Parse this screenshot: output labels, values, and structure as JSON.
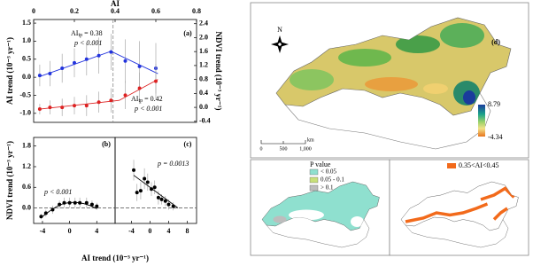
{
  "chart_data": [
    {
      "type": "scatter",
      "panel_label": "(a)",
      "x_label": "AI",
      "y_label": "AI trend (10⁻³ yr⁻¹)",
      "y2_label": "NDVI trend (10⁻³ yr⁻¹)",
      "x": [
        0.03,
        0.08,
        0.14,
        0.2,
        0.26,
        0.32,
        0.38,
        0.45,
        0.52,
        0.6
      ],
      "xlim": [
        0,
        0.8
      ],
      "xticks": [
        0,
        0.2,
        0.4,
        0.6,
        0.8
      ],
      "ylim": [
        -1.25,
        1.6
      ],
      "yticks": [
        {
          "value": -1,
          "label": "-1.0"
        },
        {
          "value": -0.5,
          "label": "-0.5"
        },
        {
          "value": 0,
          "label": "0.0"
        },
        {
          "value": 0.5,
          "label": "0.5"
        },
        {
          "value": 1,
          "label": "1.0"
        },
        {
          "value": 1.5,
          "label": "1.5"
        }
      ],
      "y2lim": [
        -0.43,
        2.52
      ],
      "y2ticks": [
        -0.4,
        {
          "value": 0,
          "label": "0.0"
        },
        0.4,
        0.8,
        1.2,
        1.6,
        {
          "value": 2,
          "label": "2.0"
        },
        2.4
      ],
      "vline": 0.39,
      "series": [
        {
          "color": "#2233dd",
          "values": [
            0.05,
            0.1,
            0.25,
            0.4,
            0.5,
            0.6,
            0.7,
            0.45,
            0.3,
            0.25
          ],
          "errors": [
            0.3,
            0.35,
            0.4,
            0.4,
            0.45,
            0.5,
            0.5,
            0.6,
            0.7,
            0.7
          ],
          "fit": {
            "x": [
              0.03,
              0.38,
              0.61
            ],
            "y": [
              0.02,
              0.72,
              0.1
            ]
          }
        },
        {
          "color": "#dd2222",
          "axis": "y2",
          "values": [
            -0.05,
            0.0,
            0.0,
            0.05,
            0.05,
            0.15,
            0.2,
            0.35,
            0.55,
            0.75
          ],
          "errors": [
            0.15,
            0.2,
            0.25,
            0.25,
            0.3,
            0.3,
            0.35,
            0.4,
            0.45,
            0.5
          ],
          "fit": {
            "x": [
              0.03,
              0.42,
              0.61
            ],
            "y": [
              -0.05,
              0.2,
              0.8
            ]
          }
        }
      ],
      "annotations": [
        {
          "text": "AI",
          "sub": "tp",
          "tail": " = 0.38",
          "color": "#2233dd"
        },
        {
          "text": "p < 0.001",
          "color": "#2233dd"
        },
        {
          "text": "AI",
          "sub": "tp",
          "tail": " = 0.42",
          "color": "#dd2222"
        },
        {
          "text": "p < 0.001",
          "color": "#dd2222"
        }
      ]
    },
    {
      "type": "scatter",
      "panel_label": "(b)",
      "x_label": "AI trend (10⁻³ yr⁻¹)",
      "y_label": "NDVI trend (10⁻³ yr⁻¹)",
      "x": [
        -4.2,
        -3.5,
        -2.5,
        -1.5,
        -0.8,
        0,
        0.8,
        1.5,
        2.5,
        3.3,
        4
      ],
      "values": [
        -0.25,
        -0.15,
        -0.05,
        0.1,
        0.15,
        0.15,
        0.15,
        0.15,
        0.15,
        0.1,
        0.05
      ],
      "errors": [
        0.08,
        0.1,
        0.12,
        0.12,
        0.15,
        0.15,
        0.15,
        0.15,
        0.15,
        0.12,
        0.1
      ],
      "color": "#000000",
      "fit": {
        "x": [
          -4.2,
          -3,
          -2,
          -1,
          0,
          1,
          2,
          3,
          4
        ],
        "y": [
          -0.28,
          -0.1,
          0.03,
          0.12,
          0.16,
          0.16,
          0.13,
          0.07,
          -0.02
        ]
      },
      "xlim": [
        -5.3,
        6.7
      ],
      "xticks": [
        -4,
        0,
        4
      ],
      "ylim": [
        -0.45,
        2.05
      ],
      "yticks": [
        {
          "value": 0,
          "label": "0.0"
        },
        0.6,
        1.2,
        1.8
      ],
      "hline": 0,
      "annotations": [
        {
          "text": "p < 0.001",
          "color": "#000000"
        }
      ]
    },
    {
      "type": "scatter",
      "panel_label": "(c)",
      "x": [
        -3.5,
        -2.8,
        -2,
        -1.2,
        -0.5,
        0.3,
        1,
        1.8,
        2.5,
        3.3,
        4,
        5
      ],
      "values": [
        1.1,
        0.45,
        0.5,
        0.85,
        0.75,
        0.55,
        0.6,
        0.3,
        0.25,
        0.2,
        0.1,
        0.05
      ],
      "errors": [
        0.3,
        0.25,
        0.25,
        0.3,
        0.25,
        0.2,
        0.2,
        0.2,
        0.15,
        0.15,
        0.15,
        0.12
      ],
      "color": "#000000",
      "fit": {
        "x": [
          -3.5,
          6
        ],
        "y": [
          0.95,
          0.0
        ]
      },
      "xlim": [
        -7.5,
        10
      ],
      "xticks": [
        -4,
        0,
        4,
        8
      ],
      "ylim": [
        -0.45,
        2.05
      ],
      "hline": 0,
      "annotations": [
        {
          "text": "p = 0.0013",
          "color": "#000000"
        }
      ]
    }
  ],
  "maps": {
    "d": {
      "panel_label": "(d)",
      "north": "N",
      "colorbar_max": 8.79,
      "colorbar_min": -4.34,
      "scale_labels": [
        "0",
        "500",
        "1,000"
      ],
      "scale_unit": "km"
    },
    "p_value": {
      "title": "P value",
      "items": [
        {
          "label": "< 0.05",
          "color": "#8fe0cf"
        },
        {
          "label": "0.05 - 0.1",
          "color": "#c8e07a"
        },
        {
          "label": "> 0.1",
          "color": "#bdbdbd"
        }
      ]
    },
    "ai_zone": {
      "items": [
        {
          "label": "0.35<AI<0.45",
          "color": "#f26a1b"
        }
      ]
    }
  }
}
